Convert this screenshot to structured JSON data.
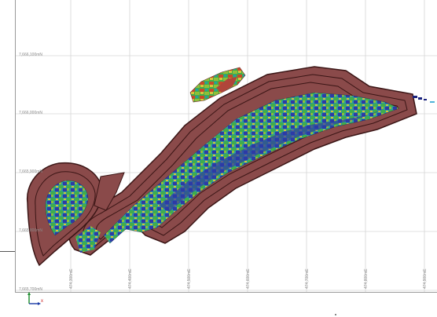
{
  "viewport": {
    "grid": true,
    "background": "#ffffff",
    "y_axis_labels": [
      "7,666,100mN",
      "7,666,000mN",
      "7,665,900mN",
      "7,665,800mN",
      "7,665,700mN"
    ],
    "x_axis_labels": [
      "474,300mE",
      "474,400mE",
      "474,500mE",
      "474,600mE",
      "474,700mE",
      "474,800mE",
      "474,900mE"
    ]
  },
  "model": {
    "pit_shell_color": "#8a4a4a",
    "pit_outline_color": "#3a1515",
    "block_colors": [
      "#2e3aa6",
      "#2a9aa0",
      "#3fae4a",
      "#8fbf3a",
      "#d9c23a",
      "#c64a2a"
    ],
    "small_block_color": "#1a237e",
    "accent_block_color": "#4fb3d9"
  },
  "axis_indicator": {
    "x_label": "x",
    "icon": "xy-axis-triad-icon"
  }
}
